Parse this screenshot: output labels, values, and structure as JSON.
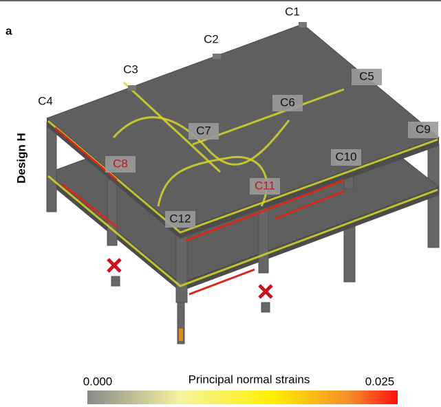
{
  "panel_label": "a",
  "design_label": "Design H",
  "columns": [
    "C1",
    "C2",
    "C3",
    "C4",
    "C5",
    "C6",
    "C7",
    "C8",
    "C9",
    "C10",
    "C11",
    "C12"
  ],
  "colorbar": {
    "title": "Principal normal strains",
    "min_label": "0.000",
    "max_label": "0.025"
  }
}
